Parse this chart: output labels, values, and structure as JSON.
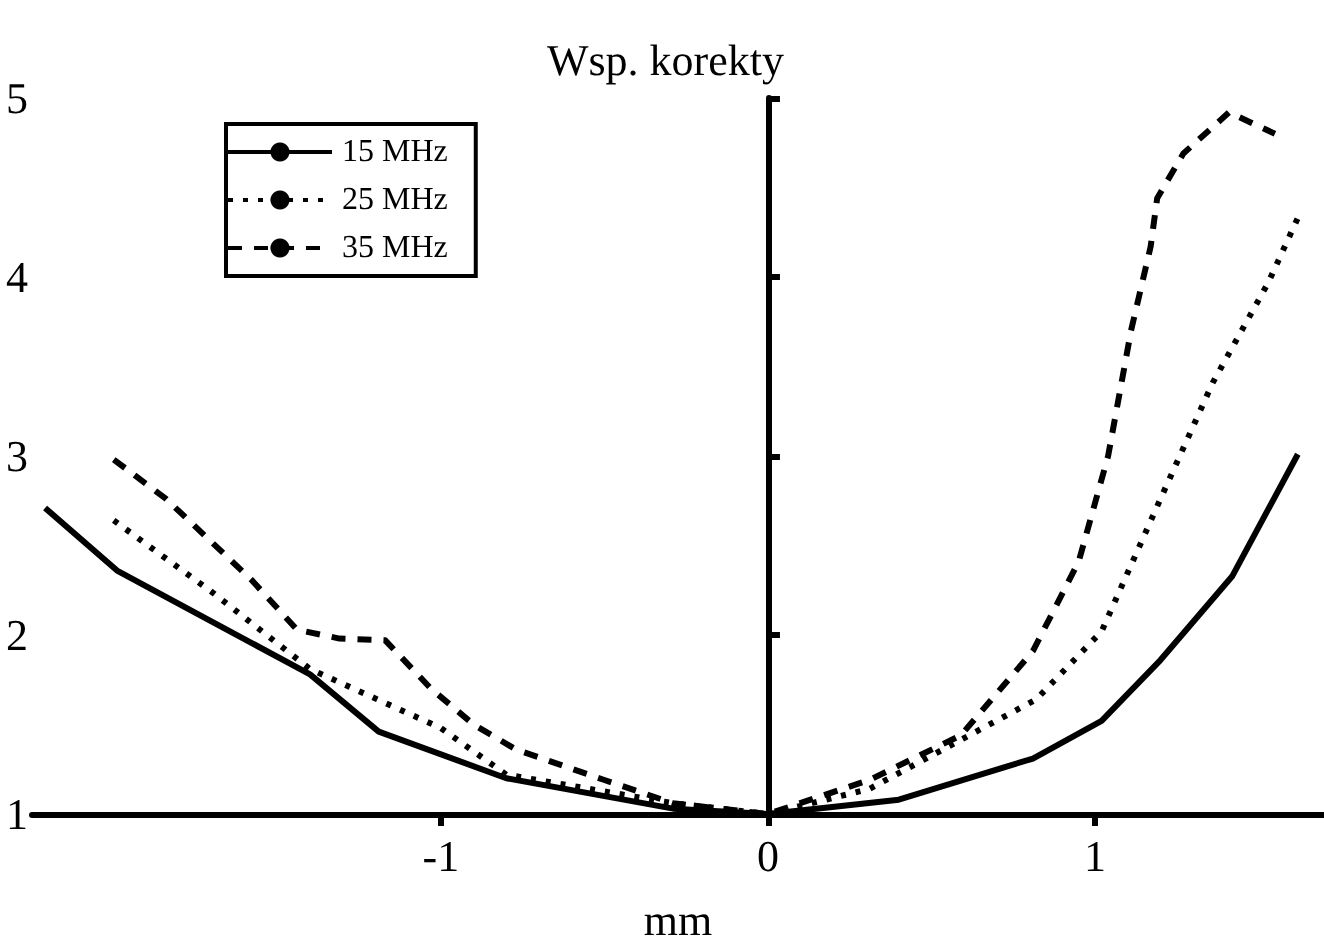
{
  "chart_data": {
    "type": "line",
    "xlabel": "mm",
    "ylabel": "Wsp. korekty",
    "xlim": [
      -2.25,
      1.7
    ],
    "xticks": [
      -1,
      0,
      1
    ],
    "ylim": [
      1,
      5
    ],
    "yticks": [
      1,
      2,
      3,
      4,
      5
    ],
    "legend": "top left",
    "marker": "none",
    "series": [
      {
        "name": "15 MHz",
        "color": "#000000",
        "line_style": "solid",
        "x": [
          -2.21,
          -1.99,
          -1.4,
          -1.19,
          -0.8,
          -0.29,
          0,
          0.4,
          0.81,
          1.02,
          1.2,
          1.42,
          1.62
        ],
        "values": [
          2.71,
          2.36,
          1.78,
          1.46,
          1.2,
          1.03,
          1,
          1.08,
          1.31,
          1.52,
          1.86,
          2.33,
          3.01
        ]
      },
      {
        "name": "25 MHz",
        "color": "#000000",
        "line_style": "dotted",
        "x": [
          -2.0,
          -1.7,
          -1.4,
          -1.0,
          -0.8,
          -0.29,
          0,
          0.31,
          0.82,
          1.02,
          1.2,
          1.36,
          1.53,
          1.62
        ],
        "values": [
          2.64,
          2.24,
          1.81,
          1.48,
          1.22,
          1.06,
          1,
          1.14,
          1.64,
          2.02,
          2.76,
          3.41,
          3.97,
          4.33
        ]
      },
      {
        "name": "35 MHz",
        "color": "#000000",
        "line_style": "dashed",
        "x": [
          -2.0,
          -1.84,
          -1.58,
          -1.44,
          -1.31,
          -1.17,
          -1.03,
          -0.9,
          -0.77,
          -0.5,
          -0.29,
          0,
          0.31,
          0.59,
          0.81,
          0.95,
          1.04,
          1.11,
          1.17,
          1.19,
          1.27,
          1.41,
          1.55
        ],
        "values": [
          2.98,
          2.76,
          2.31,
          2.03,
          1.98,
          1.97,
          1.7,
          1.5,
          1.36,
          1.19,
          1.06,
          1,
          1.19,
          1.44,
          1.91,
          2.41,
          3.0,
          3.7,
          4.17,
          4.44,
          4.69,
          4.92,
          4.8
        ]
      }
    ]
  }
}
